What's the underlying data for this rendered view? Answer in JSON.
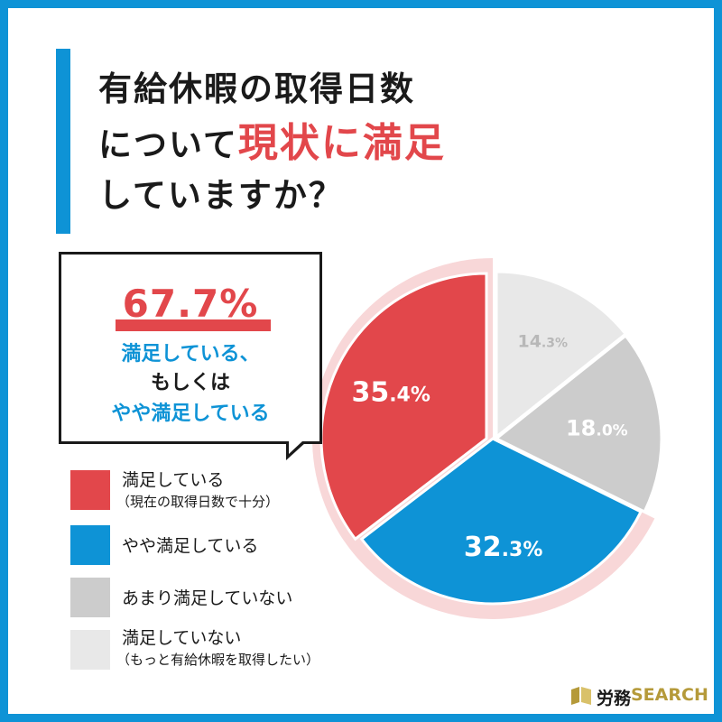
{
  "title": {
    "line1": "有給休暇の取得日数",
    "line2_prefix": "について",
    "line2_highlight": "現状に満足",
    "line3": "していますか？"
  },
  "callout": {
    "percent": "67.7%",
    "line1": "満足している、",
    "line2": "もしくは",
    "line3": "やや満足している"
  },
  "legend": [
    {
      "label": "満足している",
      "sub": "（現在の取得日数で十分）",
      "color": "#e2474b"
    },
    {
      "label": "やや満足している",
      "sub": "",
      "color": "#0e93d6"
    },
    {
      "label": "あまり満足していない",
      "sub": "",
      "color": "#cccccc"
    },
    {
      "label": "満足していない",
      "sub": "（もっと有給休暇を取得したい）",
      "color": "#e8e8e8"
    }
  ],
  "logo": {
    "part1": "労務",
    "part2": "SEARCH"
  },
  "colors": {
    "accent_blue": "#0e93d6",
    "accent_red": "#e2474b",
    "highlight_ring": "#f8d7d8"
  },
  "chart_data": {
    "type": "pie",
    "categories": [
      "満足している",
      "やや満足している",
      "あまり満足していない",
      "満足していない"
    ],
    "values": [
      35.4,
      32.3,
      18.0,
      14.3
    ],
    "labels": [
      "35.4%",
      "32.3%",
      "18.0%",
      "14.3%"
    ],
    "colors": [
      "#e2474b",
      "#0e93d6",
      "#cccccc",
      "#e8e8e8"
    ],
    "label_colors": [
      "#ffffff",
      "#ffffff",
      "#ffffff",
      "#b8b8b8"
    ],
    "highlighted": [
      "満足している",
      "やや満足している"
    ]
  }
}
